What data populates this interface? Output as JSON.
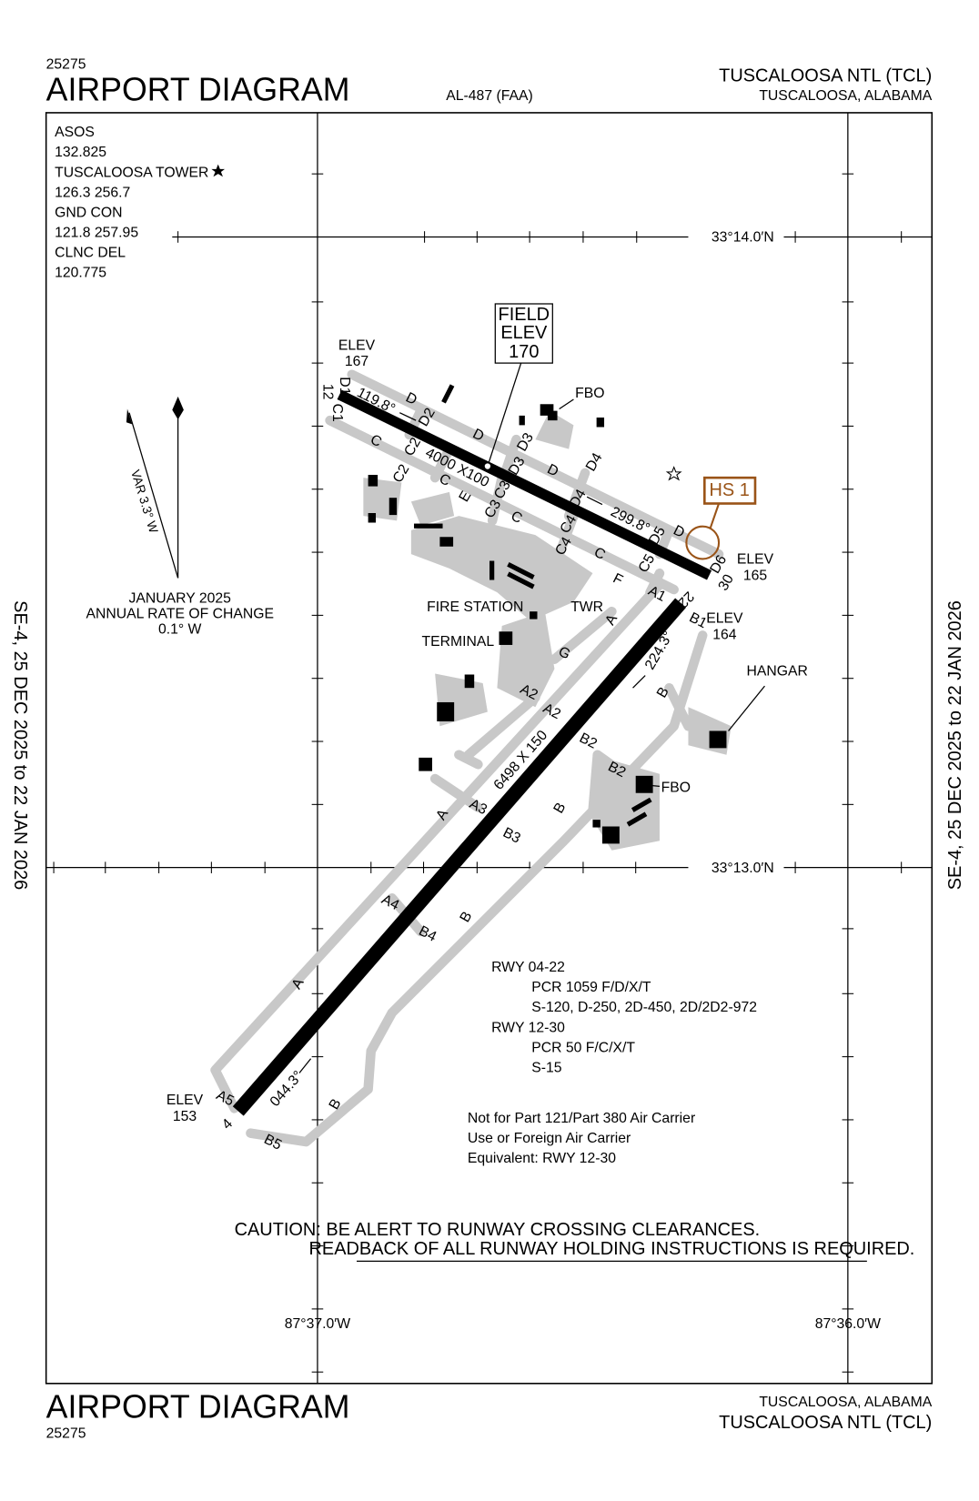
{
  "header": {
    "id": "25275",
    "title": "AIRPORT DIAGRAM",
    "doc": "AL-487 (FAA)",
    "airport": "TUSCALOOSA NTL (TCL)",
    "city": "TUSCALOOSA, ALABAMA"
  },
  "validity": "SE-4,  25 DEC 2025  to  22 JAN 2026",
  "frequencies": [
    "ASOS",
    "132.825",
    "TUSCALOOSA TOWER",
    "126.3  256.7",
    "GND CON",
    "121.8  257.95",
    "CLNC DEL",
    "120.775"
  ],
  "coordinates": {
    "lat_north": "33°14.0′N",
    "lat_south": "33°13.0′N",
    "lon_west": "87°37.0′W",
    "lon_east": "87°36.0′W"
  },
  "magnetic": {
    "variation": "VAR 3.3° W",
    "date": "JANUARY 2025",
    "rate_title": "ANNUAL RATE OF CHANGE",
    "rate": "0.1° W"
  },
  "field_elevation": [
    "FIELD",
    "ELEV",
    "170"
  ],
  "elevations": [
    [
      "ELEV",
      "167"
    ],
    [
      "ELEV",
      "165"
    ],
    [
      "ELEV",
      "164"
    ],
    [
      "ELEV",
      "153"
    ]
  ],
  "hot_spot": "HS 1",
  "map_labels": [
    "12",
    "D1",
    "C1",
    "119.8°",
    "D",
    "D2",
    "C",
    "C2",
    "4000 X100",
    "D",
    "D3",
    "D3",
    "C2",
    "C",
    "E",
    "C3",
    "C3",
    "D",
    "D4",
    "C",
    "D4",
    "299.8°",
    "D5",
    "D",
    "D6",
    "30",
    "C4",
    "C4",
    "C",
    "C5",
    "F",
    "A1",
    "22",
    "B1",
    "A",
    "G",
    "224.3°",
    "B",
    "A2",
    "A2",
    "B2",
    "B2",
    "6498 X 150",
    "A3",
    "A",
    "B",
    "B3",
    "A4",
    "B4",
    "B",
    "A",
    "A5",
    "4",
    "044.3°",
    "B",
    "B5"
  ],
  "buildings": [
    "FBO",
    "FIRE STATION",
    "TWR",
    "TERMINAL",
    "HANGAR",
    "FBO"
  ],
  "runway_info": [
    "RWY 04-22",
    "PCR 1059 F/D/X/T",
    "S-120, D-250, 2D-450, 2D/2D2-972",
    "RWY 12-30",
    "PCR 50 F/C/X/T",
    "S-15"
  ],
  "notes": [
    "Not for Part 121/Part 380 Air Carrier",
    "Use or Foreign Air Carrier",
    "Equivalent: RWY 12-30"
  ],
  "caution": [
    "CAUTION: BE ALERT TO RUNWAY CROSSING CLEARANCES.",
    "READBACK OF ALL RUNWAY HOLDING INSTRUCTIONS IS REQUIRED."
  ]
}
